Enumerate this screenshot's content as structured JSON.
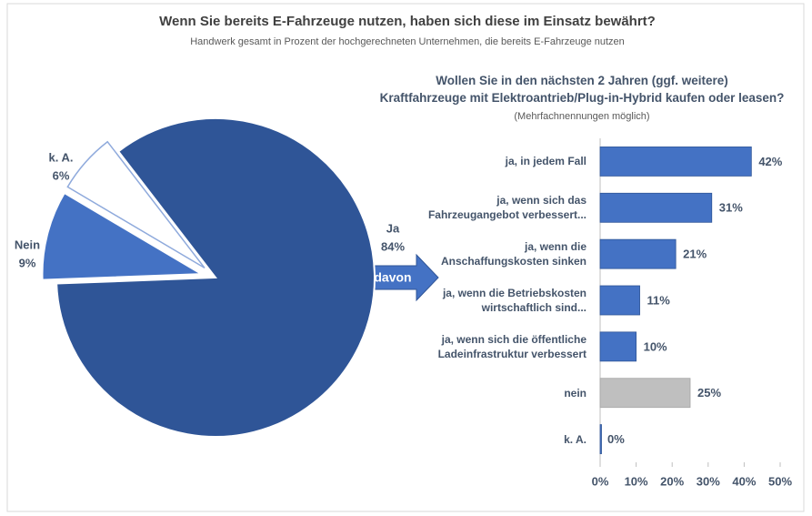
{
  "title": "Wenn Sie bereits E-Fahrzeuge nutzen, haben sich diese im Einsatz bewährt?",
  "subtitle": "Handwerk gesamt in Prozent der hochgerechneten Unternehmen, die bereits E-Fahrzeuge nutzen",
  "annotation": "davon",
  "chart_data": [
    {
      "type": "pie",
      "categories": [
        "Ja",
        "Nein",
        "k. A."
      ],
      "values": [
        84,
        9,
        6
      ],
      "value_labels": [
        "84%",
        "9%",
        "6%"
      ],
      "colors": [
        "#2f5597",
        "#4472c4",
        "#ffffff"
      ]
    },
    {
      "type": "hbar",
      "title": "Wollen Sie in den nächsten 2 Jahren (ggf. weitere)\nKraftfahrzeuge mit Elektroantrieb/Plug-in-Hybrid kaufen oder leasen?",
      "subtitle": "(Mehrfachnennungen möglich)",
      "categories": [
        "ja, in jedem Fall",
        "ja, wenn sich das\nFahrzeugangebot verbessert...",
        "ja, wenn die\nAnschaffungskosten sinken",
        "ja, wenn die Betriebskosten\nwirtschaftlich sind...",
        "ja, wenn sich die öffentliche\nLadeinfrastruktur verbessert",
        "nein",
        "k. A."
      ],
      "values": [
        42,
        31,
        21,
        11,
        10,
        25,
        0
      ],
      "value_labels": [
        "42%",
        "31%",
        "21%",
        "11%",
        "10%",
        "25%",
        "0%"
      ],
      "colors": [
        "#4472c4",
        "#4472c4",
        "#4472c4",
        "#4472c4",
        "#4472c4",
        "#bfbfbf",
        "#4472c4"
      ],
      "xlim": [
        0,
        50
      ],
      "xticks": [
        {
          "value": 0,
          "label": "0%"
        },
        {
          "value": 10,
          "label": "10%"
        },
        {
          "value": 20,
          "label": "20%"
        },
        {
          "value": 30,
          "label": "30%"
        },
        {
          "value": 40,
          "label": "40%"
        },
        {
          "value": 50,
          "label": "50%"
        }
      ]
    }
  ]
}
